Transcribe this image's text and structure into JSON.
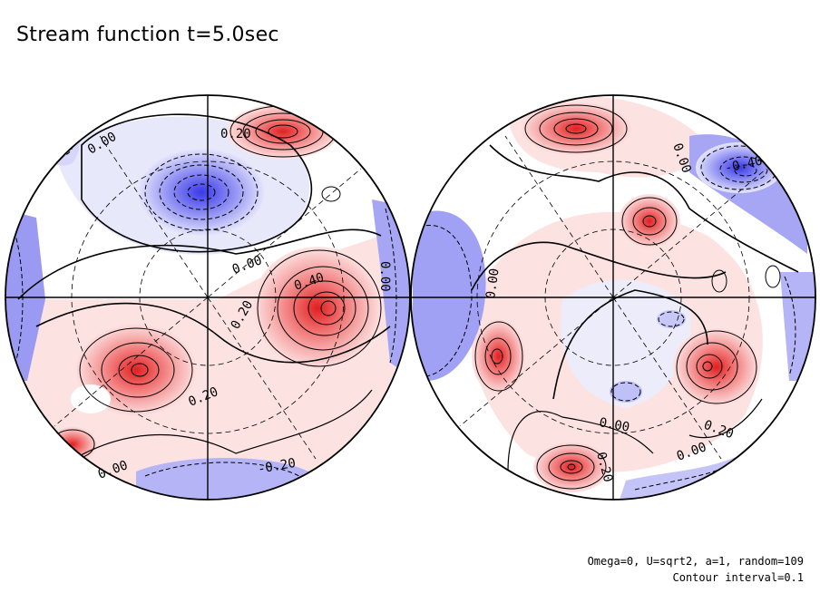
{
  "title": "Stream function t=5.0sec",
  "footer": {
    "params": "Omega=0, U=sqrt2, a=1, random=109",
    "contour": "Contour interval=0.1"
  },
  "colors": {
    "positive": "#f06060",
    "negative": "#6a6af0",
    "line": "#000000"
  },
  "hemispheres": [
    {
      "id": "left",
      "labels": [
        "0.20",
        "0.00",
        "0.00",
        "0.40",
        "0.20",
        "0.00",
        "0.20",
        "0.00",
        "-0.20"
      ]
    },
    {
      "id": "right",
      "labels": [
        "0.00",
        "-0.40",
        "0.00",
        "0.00",
        "0.20",
        "0.00",
        "0.20"
      ]
    }
  ]
}
